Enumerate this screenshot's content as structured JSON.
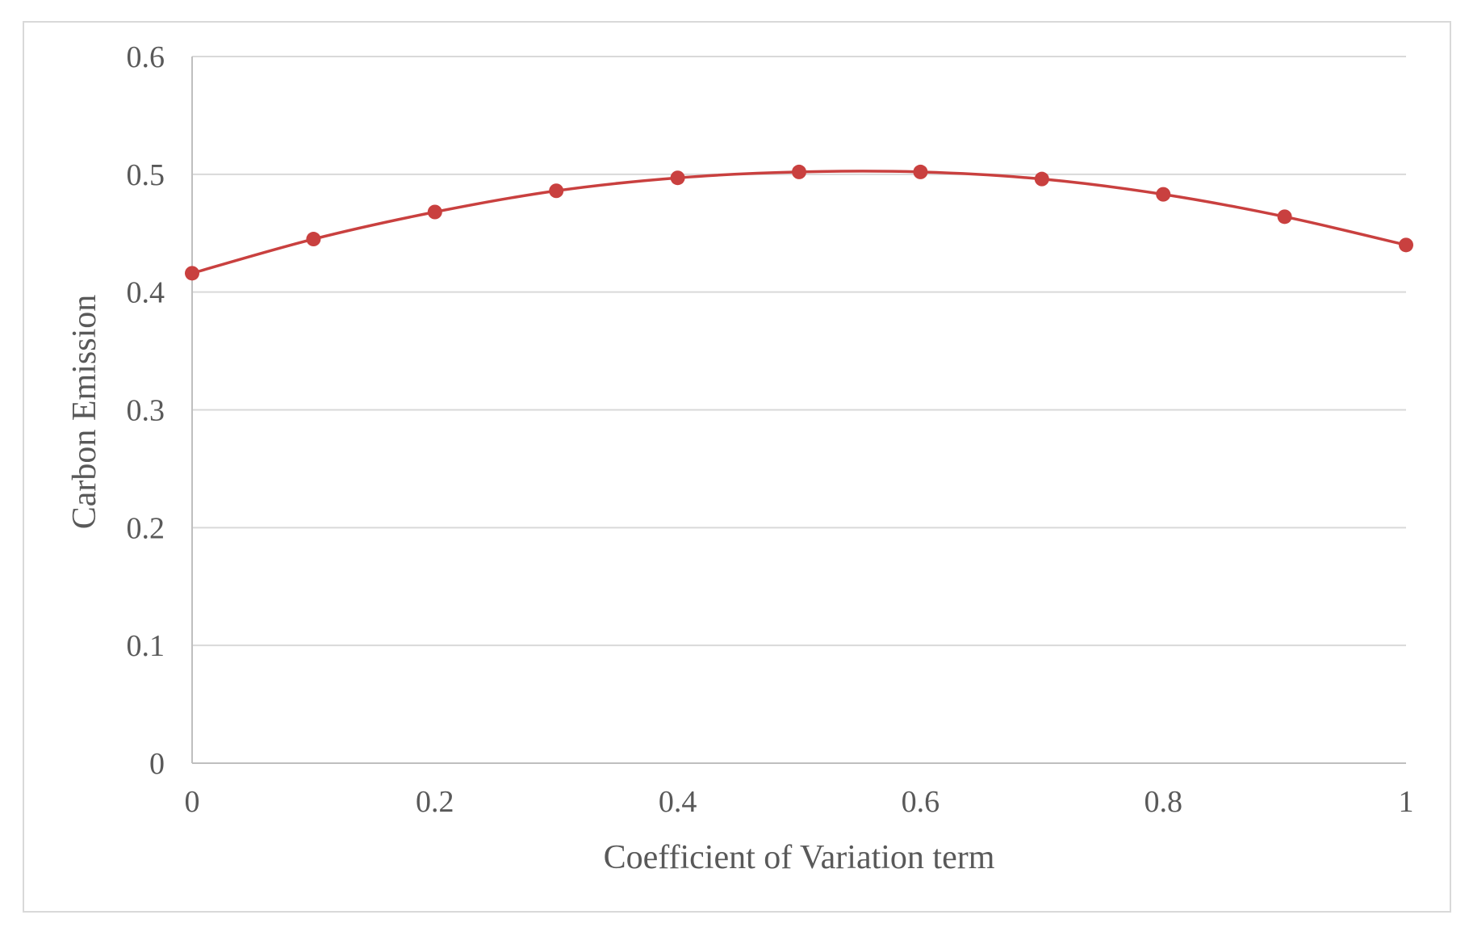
{
  "chart_data": {
    "type": "line",
    "title": "",
    "xlabel": "Coefficient of Variation term",
    "ylabel": "Carbon Emission",
    "x": [
      0,
      0.1,
      0.2,
      0.3,
      0.4,
      0.5,
      0.6,
      0.7,
      0.8,
      0.9,
      1
    ],
    "series": [
      {
        "values": [
          0.416,
          0.445,
          0.468,
          0.486,
          0.497,
          0.502,
          0.502,
          0.496,
          0.483,
          0.464,
          0.44
        ],
        "color": "#c9403f"
      }
    ],
    "xlim": [
      0,
      1
    ],
    "ylim": [
      0,
      0.6
    ],
    "xticks": [
      0,
      0.2,
      0.4,
      0.6,
      0.8,
      1
    ],
    "xtick_labels": [
      "0",
      "0.2",
      "0.4",
      "0.6",
      "0.8",
      "1"
    ],
    "yticks": [
      0,
      0.1,
      0.2,
      0.3,
      0.4,
      0.5,
      0.6
    ],
    "ytick_labels": [
      "0",
      "0.1",
      "0.2",
      "0.3",
      "0.4",
      "0.5",
      "0.6"
    ],
    "grid": "horizontal",
    "smooth": true,
    "markers": "circle",
    "legend": "none",
    "colors": {
      "gridline": "#d9d9d9",
      "axis": "#bfbfbf",
      "text": "#595959",
      "frame": "#d9d9d9"
    }
  }
}
